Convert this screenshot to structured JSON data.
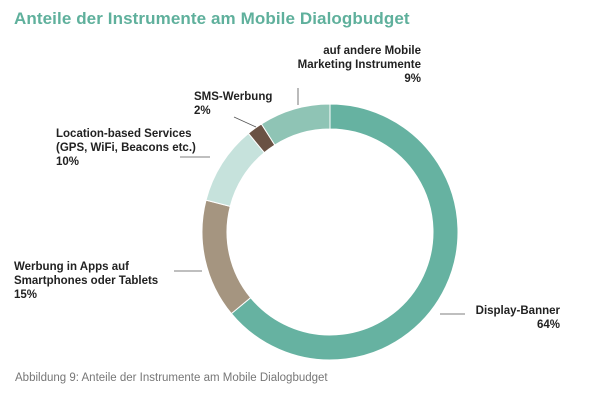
{
  "title": "Anteile der Instrumente am Mobile Dialogbudget",
  "caption": "Abbildung 9: Anteile der Instrumente am Mobile Dialogbudget",
  "chart_data": {
    "type": "pie",
    "donut": true,
    "title": "Anteile der Instrumente am Mobile Dialogbudget",
    "start": "12 o'clock",
    "direction": "clockwise",
    "slices": [
      {
        "label_lines": [
          "Display-Banner"
        ],
        "value": 64,
        "value_label": "64%",
        "color": "#66b2a1"
      },
      {
        "label_lines": [
          "Werbung in Apps auf",
          "Smartphones oder Tablets"
        ],
        "value": 15,
        "value_label": "15%",
        "color": "#a59580"
      },
      {
        "label_lines": [
          "Location-based Services",
          "(GPS, WiFi, Beacons etc.)"
        ],
        "value": 10,
        "value_label": "10%",
        "color": "#c6e2dc"
      },
      {
        "label_lines": [
          "SMS-Werbung"
        ],
        "value": 2,
        "value_label": "2%",
        "color": "#6a5244"
      },
      {
        "label_lines": [
          "auf andere Mobile",
          "Marketing Instrumente"
        ],
        "value": 9,
        "value_label": "9%",
        "color": "#8fc4b5"
      }
    ]
  }
}
